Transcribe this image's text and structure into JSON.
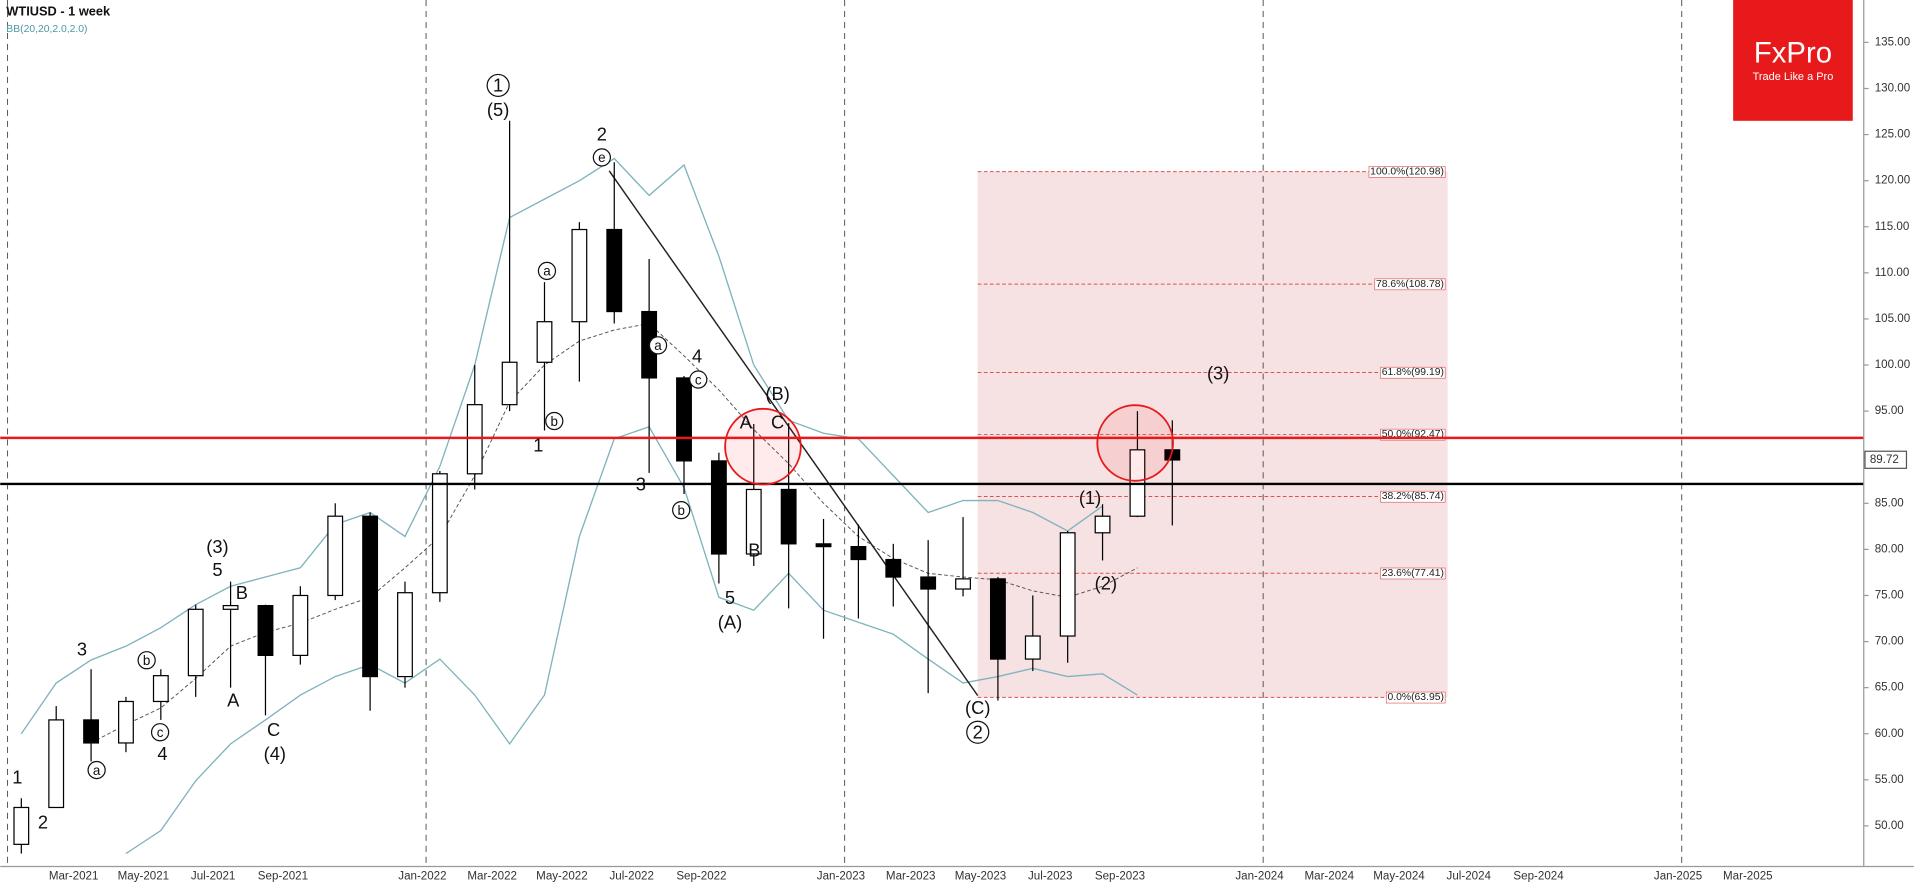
{
  "chart_data": {
    "type": "candlestick",
    "title": "WTIUSD - 1 week",
    "indicator": "BB(20,20,2.0,2.0)",
    "logo": "FxPro",
    "tagline": "Trade Like a Pro",
    "categories": [
      null,
      null,
      "Mar-2021",
      null,
      "May-2021",
      null,
      "Jul-2021",
      null,
      "Sep-2021",
      null,
      null,
      null,
      "Jan-2022",
      null,
      "Mar-2022",
      null,
      "May-2022",
      null,
      "Jul-2022",
      null,
      "Sep-2022",
      null,
      null,
      null,
      "Jan-2023",
      null,
      "Mar-2023",
      null,
      "May-2023",
      null,
      "Jul-2023",
      null,
      "Sep-2023",
      null,
      null,
      null,
      "Jan-2024",
      null,
      "Mar-2024",
      null,
      "May-2024",
      null,
      "Jul-2024",
      null,
      "Sep-2024",
      null,
      null,
      null,
      "Jan-2025",
      null,
      "Mar-2025"
    ],
    "open": [
      48,
      52,
      61.5,
      59,
      63.5,
      66.3,
      73.5,
      73.9,
      68.5,
      75,
      83.6,
      66.2,
      75.3,
      88.2,
      95.7,
      100.3,
      104.7,
      114.7,
      105.8,
      98.6,
      89.6,
      79.5,
      86.5,
      80.6,
      80.3,
      78.9,
      77,
      75.7,
      76.8,
      68.1,
      70.6,
      81.8,
      83.6,
      90.8,
      null,
      null,
      null,
      null,
      null,
      null,
      null,
      null,
      null,
      null,
      null,
      null,
      null,
      null,
      null,
      null,
      null
    ],
    "high": [
      53,
      63,
      67,
      64,
      67,
      74,
      76.5,
      74,
      76,
      85,
      84,
      76.5,
      88.5,
      100,
      126.5,
      109,
      115.5,
      122,
      111.5,
      98.8,
      90.5,
      93.6,
      93.7,
      83.3,
      82.7,
      80.6,
      81,
      83.5,
      77,
      75,
      82,
      84.9,
      95,
      94,
      null,
      null,
      null,
      null,
      null,
      null,
      null,
      null,
      null,
      null,
      null,
      null,
      null,
      null,
      null,
      null,
      null
    ],
    "low": [
      47,
      52,
      57,
      58,
      61.5,
      64,
      65,
      62,
      67.5,
      74.5,
      62.5,
      65,
      74.3,
      86.5,
      95,
      92.9,
      98.2,
      104.5,
      88.3,
      86,
      76.3,
      78.2,
      73.6,
      70.3,
      72.5,
      73.8,
      64.4,
      74.9,
      63.6,
      66.8,
      67.7,
      78.8,
      83.5,
      82.6,
      null,
      null,
      null,
      null,
      null,
      null,
      null,
      null,
      null,
      null,
      null,
      null,
      null,
      null,
      null,
      null,
      null
    ],
    "close": [
      52,
      61.5,
      59,
      63.5,
      66.3,
      73.5,
      73.9,
      68.5,
      75,
      83.6,
      66.2,
      75.3,
      88.2,
      95.7,
      100.3,
      104.7,
      114.7,
      105.8,
      98.6,
      89.6,
      79.5,
      86.5,
      80.6,
      80.3,
      78.9,
      77,
      75.7,
      76.8,
      68.1,
      70.6,
      81.8,
      83.6,
      90.8,
      89.7,
      null,
      null,
      null,
      null,
      null,
      null,
      null,
      null,
      null,
      null,
      null,
      null,
      null,
      null,
      null,
      null,
      null
    ],
    "bands": {
      "color": "#7fb3bd",
      "upper": [
        60,
        65.5,
        68,
        69.5,
        71.5,
        74,
        76,
        77,
        78,
        82.7,
        84,
        81.4,
        89,
        100,
        116,
        118,
        120,
        122.4,
        118.4,
        121.7,
        111.8,
        100,
        94,
        92.6,
        92,
        88,
        84,
        85.3,
        85.3,
        84,
        82,
        84.7,
        null,
        null,
        null,
        null,
        null,
        null,
        null,
        null,
        null,
        null,
        null,
        null,
        null,
        null,
        null,
        null,
        null,
        null,
        null
      ],
      "middle": [
        null,
        null,
        59,
        61,
        62.8,
        66,
        69.5,
        71,
        72,
        73.5,
        74.8,
        78,
        81.4,
        88,
        96,
        100,
        102.6,
        103.8,
        104.5,
        101,
        97.3,
        93,
        89.3,
        85,
        81.4,
        79,
        77.4,
        77,
        76.7,
        75.5,
        74.8,
        76,
        78,
        null,
        null,
        null,
        null,
        null,
        null,
        null,
        null,
        null,
        null,
        null,
        null,
        null,
        null,
        null,
        null,
        null,
        null
      ],
      "lower": [
        null,
        null,
        null,
        47,
        49.5,
        54.9,
        58.9,
        61.5,
        64.2,
        66.2,
        67.5,
        65.5,
        68.1,
        64.2,
        58.9,
        64.2,
        81.4,
        92,
        93.3,
        86.7,
        74.8,
        73.4,
        77.4,
        73.4,
        72.1,
        70.8,
        68.1,
        65.5,
        66.2,
        67.1,
        66.2,
        66.5,
        64.2,
        null,
        null,
        null,
        null,
        null,
        null,
        null,
        null,
        null,
        null,
        null,
        null,
        null,
        null,
        null,
        null,
        null,
        null
      ]
    },
    "ylim": [
      45.6,
      139.6
    ],
    "yticks": [
      {
        "value": 50,
        "label": "50.00"
      },
      {
        "value": 55,
        "label": "55.00"
      },
      {
        "value": 60,
        "label": "60.00"
      },
      {
        "value": 65,
        "label": "65.00"
      },
      {
        "value": 70,
        "label": "70.00"
      },
      {
        "value": 75,
        "label": "75.00"
      },
      {
        "value": 80,
        "label": "80.00"
      },
      {
        "value": 85,
        "label": "85.00"
      },
      {
        "value": 90,
        "label": "90.00"
      },
      {
        "value": 95,
        "label": "95.00"
      },
      {
        "value": 100,
        "label": "100.00"
      },
      {
        "value": 105,
        "label": "105.00"
      },
      {
        "value": 110,
        "label": "110.00"
      },
      {
        "value": 115,
        "label": "115.00"
      },
      {
        "value": 120,
        "label": "120.00"
      },
      {
        "value": 125,
        "label": "125.00"
      },
      {
        "value": 130,
        "label": "130.00"
      },
      {
        "value": 135,
        "label": "135.00"
      }
    ],
    "last_price": 89.72,
    "levels": [
      {
        "value": 92.1,
        "color": "#e8191b"
      },
      {
        "value": 87.1,
        "color": "#000000"
      }
    ],
    "fib_levels": [
      {
        "value": 120.98,
        "label": "100.0%(120.98)"
      },
      {
        "value": 108.78,
        "label": "78.6%(108.78)"
      },
      {
        "value": 99.19,
        "label": "61.8%(99.19)"
      },
      {
        "value": 92.47,
        "label": "50.0%(92.47)"
      },
      {
        "value": 85.74,
        "label": "38.2%(85.74)"
      },
      {
        "value": 77.41,
        "label": "23.6%(77.41)"
      },
      {
        "value": 63.95,
        "label": "0.0%(63.95)"
      }
    ],
    "annotations": [
      "1",
      "2",
      "3",
      "a",
      "b",
      "c",
      "4",
      "(3)",
      "5",
      "B",
      "A",
      "C",
      "(4)",
      "1",
      "(5)",
      "2",
      "e",
      "a",
      "b",
      "1",
      "a",
      "4",
      "c",
      "3",
      "b",
      "(B)",
      "A",
      "C",
      "B",
      "5",
      "(A)",
      "(C)",
      "2",
      "(1)",
      "(2)",
      "(3)"
    ]
  }
}
